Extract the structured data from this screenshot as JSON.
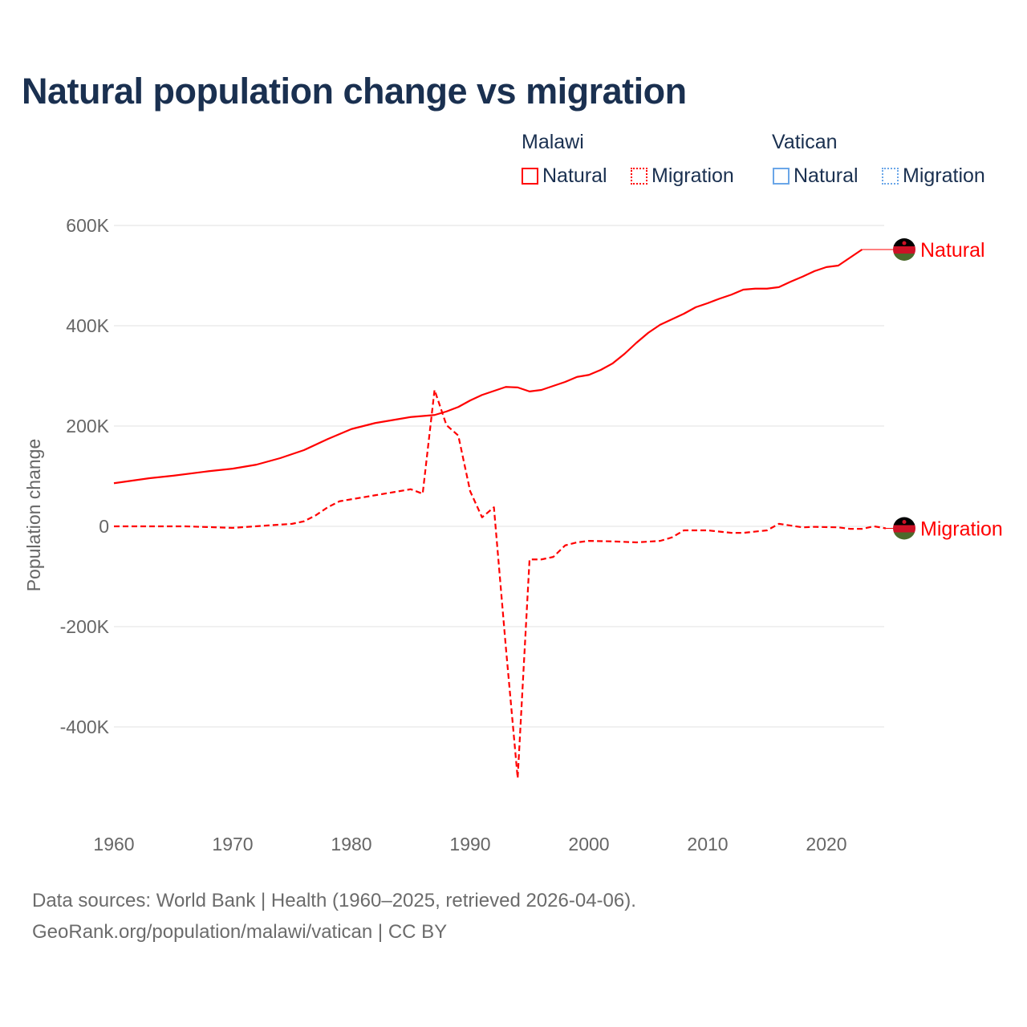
{
  "title": "Natural population change vs migration",
  "legend": {
    "groups": [
      {
        "name": "Malawi",
        "color": "#ff0000",
        "items": [
          "Natural",
          "Migration"
        ]
      },
      {
        "name": "Vatican",
        "color": "#6aa6e8",
        "items": [
          "Natural",
          "Migration"
        ]
      }
    ]
  },
  "footer": {
    "line1": "Data sources: World Bank | Health (1960–2025, retrieved 2026-04-06).",
    "line2": "GeoRank.org/population/malawi/vatican | CC BY"
  },
  "chart_data": {
    "type": "line",
    "title": "Natural population change vs migration",
    "xlabel": "",
    "ylabel": "Population change",
    "xlim": [
      1960,
      2025
    ],
    "ylim": [
      -560,
      600
    ],
    "x_ticks": [
      1960,
      1970,
      1980,
      1990,
      2000,
      2010,
      2020
    ],
    "x_tick_labels": [
      "1960",
      "1970",
      "1980",
      "1990",
      "2000",
      "2010",
      "2020"
    ],
    "y_ticks": [
      600,
      400,
      200,
      0,
      -200,
      -400
    ],
    "y_tick_labels": [
      "600K",
      "400K",
      "200K",
      "0",
      "-200K",
      "-400K"
    ],
    "units": "thousands",
    "grid": true,
    "legend_placement": "top-right",
    "series": [
      {
        "name": "Natural",
        "country": "Malawi",
        "style": "solid",
        "color": "#ff0000",
        "end_label": "Natural",
        "x": [
          1960,
          1963,
          1965,
          1968,
          1970,
          1972,
          1974,
          1976,
          1978,
          1980,
          1982,
          1984,
          1985,
          1987,
          1988,
          1989,
          1990,
          1991,
          1992,
          1993,
          1994,
          1995,
          1996,
          1997,
          1998,
          1999,
          2000,
          2001,
          2002,
          2003,
          2004,
          2005,
          2006,
          2007,
          2008,
          2009,
          2010,
          2011,
          2012,
          2013,
          2014,
          2015,
          2016,
          2017,
          2018,
          2019,
          2020,
          2021,
          2022,
          2023
        ],
        "y": [
          86,
          96,
          101,
          110,
          115,
          123,
          136,
          152,
          174,
          194,
          206,
          214,
          218,
          222,
          229,
          238,
          251,
          262,
          270,
          278,
          277,
          269,
          272,
          280,
          288,
          298,
          302,
          312,
          325,
          344,
          366,
          386,
          402,
          413,
          424,
          437,
          445,
          454,
          462,
          472,
          474,
          474,
          477,
          488,
          498,
          509,
          517,
          520,
          536,
          552
        ]
      },
      {
        "name": "Migration",
        "country": "Malawi",
        "style": "dashed",
        "color": "#ff0000",
        "end_label": "Migration",
        "x": [
          1960,
          1966,
          1970,
          1975,
          1976,
          1977,
          1978,
          1979,
          1980,
          1982,
          1984,
          1985,
          1986,
          1987,
          1988,
          1989,
          1990,
          1991,
          1992,
          1993,
          1994,
          1995,
          1996,
          1997,
          1998,
          1999,
          2000,
          2002,
          2004,
          2006,
          2007,
          2008,
          2010,
          2012,
          2013,
          2015,
          2016,
          2018,
          2019,
          2021,
          2022,
          2023,
          2024,
          2025
        ],
        "y": [
          0,
          0,
          -3,
          5,
          10,
          22,
          38,
          50,
          54,
          62,
          70,
          74,
          65,
          272,
          202,
          181,
          70,
          18,
          38,
          -240,
          -502,
          -66,
          -66,
          -61,
          -38,
          -32,
          -29,
          -30,
          -32,
          -29,
          -22,
          -8,
          -8,
          -13,
          -13,
          -8,
          5,
          -2,
          -1,
          -2,
          -5,
          -5,
          0,
          -4
        ]
      }
    ]
  }
}
